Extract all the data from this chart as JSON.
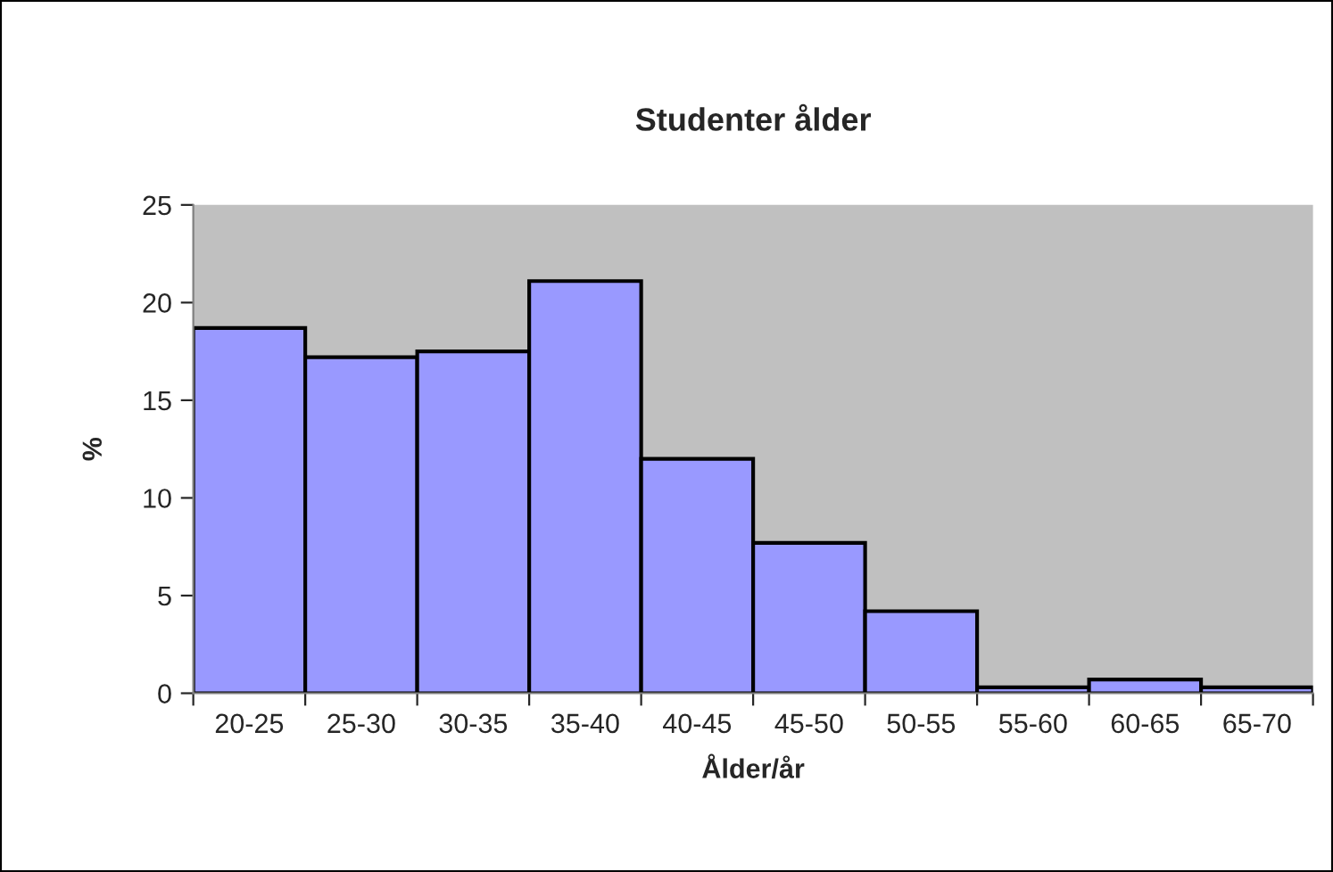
{
  "chart_data": {
    "type": "bar",
    "title": "Studenter ålder",
    "xlabel": "Ålder/år",
    "ylabel": "%",
    "categories": [
      "20-25",
      "25-30",
      "30-35",
      "35-40",
      "40-45",
      "45-50",
      "50-55",
      "55-60",
      "60-65",
      "65-70"
    ],
    "values": [
      18.7,
      17.2,
      17.5,
      21.1,
      12.0,
      7.7,
      4.2,
      0.3,
      0.7,
      0.3
    ],
    "color": "#9999ff",
    "ylim": [
      0,
      25
    ],
    "yticks": [
      0,
      5,
      10,
      15,
      20,
      25
    ],
    "grid": false,
    "legend": false
  }
}
